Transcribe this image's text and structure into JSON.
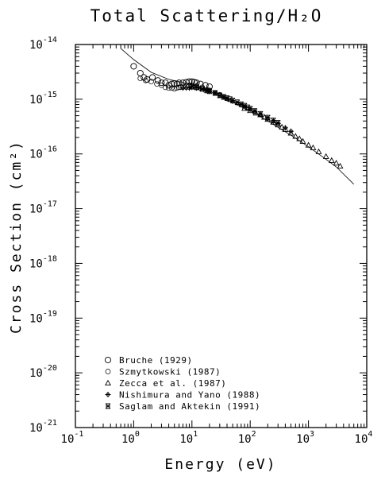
{
  "chart_data": {
    "type": "scatter",
    "title": "Total Scattering/H₂O",
    "xlabel": "Energy  (eV)",
    "ylabel": "Cross  Section  (cm²)",
    "x_scale": "log",
    "y_scale": "log",
    "xlim": [
      0.1,
      10000
    ],
    "ylim": [
      1e-21,
      1e-14
    ],
    "x_ticks": [
      {
        "base": "10",
        "exp": "-1"
      },
      {
        "base": "10",
        "exp": "0"
      },
      {
        "base": "10",
        "exp": "1"
      },
      {
        "base": "10",
        "exp": "2"
      },
      {
        "base": "10",
        "exp": "3"
      },
      {
        "base": "10",
        "exp": "4"
      }
    ],
    "y_ticks": [
      {
        "base": "10",
        "exp": "-21"
      },
      {
        "base": "10",
        "exp": "-20"
      },
      {
        "base": "10",
        "exp": "-19"
      },
      {
        "base": "10",
        "exp": "-18"
      },
      {
        "base": "10",
        "exp": "-17"
      },
      {
        "base": "10",
        "exp": "-16"
      },
      {
        "base": "10",
        "exp": "-15"
      },
      {
        "base": "10",
        "exp": "-14"
      }
    ],
    "grid": false,
    "legend_position": "bottom-left",
    "fit_line": {
      "x": [
        0.6,
        1,
        2,
        4,
        8,
        15,
        30,
        60,
        100,
        200,
        500,
        1000,
        2000,
        3000,
        6000
      ],
      "y": [
        8.5e-15,
        5.3e-15,
        3.1e-15,
        2.3e-15,
        1.95e-15,
        1.6e-15,
        1.15e-15,
        8e-16,
        6.2e-16,
        4e-16,
        2.2e-16,
        1.35e-16,
        8e-17,
        5.8e-17,
        2.8e-17
      ]
    },
    "series": [
      {
        "name": "Bruche (1929)",
        "marker": "circle",
        "x": [
          1.0,
          1.3,
          1.5,
          1.7,
          2.1,
          2.6,
          3.0,
          3.5,
          4.0,
          4.5,
          5.0,
          5.5,
          6.0,
          7.0,
          8.0,
          9.0,
          10,
          11,
          12,
          14,
          17,
          20
        ],
        "y": [
          4e-15,
          3e-15,
          2.5e-15,
          2.3e-15,
          2.5e-15,
          2.2e-15,
          2e-15,
          2e-15,
          1.8e-15,
          1.9e-15,
          1.95e-15,
          1.9e-15,
          2e-15,
          2e-15,
          2.05e-15,
          2.1e-15,
          2.1e-15,
          2.05e-15,
          2e-15,
          1.9e-15,
          1.8e-15,
          1.7e-15
        ]
      },
      {
        "name": "Szmytkowski (1987)",
        "marker": "circle-thin",
        "x": [
          1.3,
          1.6,
          2.0,
          2.5,
          3.0,
          3.5,
          4.0,
          4.5,
          5.0,
          5.5,
          6.0,
          6.5,
          7.0,
          8.0,
          9.0,
          10,
          12,
          15,
          20,
          25,
          30
        ],
        "y": [
          2.4e-15,
          2.2e-15,
          2.1e-15,
          1.9e-15,
          1.8e-15,
          1.65e-15,
          1.6e-15,
          1.6e-15,
          1.55e-15,
          1.6e-15,
          1.65e-15,
          1.65e-15,
          1.7e-15,
          1.75e-15,
          1.8e-15,
          1.8e-15,
          1.75e-15,
          1.65e-15,
          1.45e-15,
          1.3e-15,
          1.2e-15
        ]
      },
      {
        "name": "Zecca et al. (1987)",
        "marker": "triangle",
        "x": [
          80,
          100,
          125,
          150,
          175,
          200,
          250,
          300,
          350,
          400,
          500,
          600,
          700,
          800,
          1000,
          1200,
          1500,
          2000,
          2500,
          3000,
          3500
        ],
        "y": [
          6.8e-16,
          6.2e-16,
          5.6e-16,
          5.2e-16,
          4.7e-16,
          4.3e-16,
          3.8e-16,
          3.4e-16,
          3.1e-16,
          2.8e-16,
          2.4e-16,
          2.1e-16,
          1.9e-16,
          1.7e-16,
          1.45e-16,
          1.3e-16,
          1.1e-16,
          9e-17,
          7.6e-17,
          6.8e-17,
          6e-17
        ]
      },
      {
        "name": "Nishimura and Yano (1988)",
        "marker": "cross-circle",
        "x": [
          7,
          8,
          9,
          10,
          12,
          14,
          16,
          18,
          20,
          25,
          30,
          35,
          40,
          50,
          60,
          70,
          80,
          100,
          120,
          150,
          200,
          250,
          300,
          400,
          500
        ],
        "y": [
          1.6e-15,
          1.6e-15,
          1.6e-15,
          1.65e-15,
          1.6e-15,
          1.55e-15,
          1.5e-15,
          1.45e-15,
          1.4e-15,
          1.3e-15,
          1.2e-15,
          1.1e-15,
          1.03e-15,
          9.2e-16,
          8.5e-16,
          7.9e-16,
          7.4e-16,
          6.6e-16,
          6e-16,
          5.3e-16,
          4.5e-16,
          4e-16,
          3.6e-16,
          3e-16,
          2.6e-16
        ]
      },
      {
        "name": "Saglam and Aktekin (1991)",
        "marker": "star",
        "x": [
          10,
          12,
          15,
          18,
          20,
          25,
          30,
          35,
          40,
          45,
          50,
          60,
          70,
          80,
          90,
          100,
          120,
          150,
          200,
          250,
          300
        ],
        "y": [
          1.7e-15,
          1.65e-15,
          1.55e-15,
          1.45e-15,
          1.4e-15,
          1.3e-15,
          1.18e-15,
          1.1e-15,
          1.05e-15,
          1e-15,
          9.5e-16,
          8.8e-16,
          8.1e-16,
          7.6e-16,
          7.1e-16,
          6.7e-16,
          6.1e-16,
          5.4e-16,
          4.6e-16,
          4.1e-16,
          3.7e-16
        ]
      }
    ]
  }
}
